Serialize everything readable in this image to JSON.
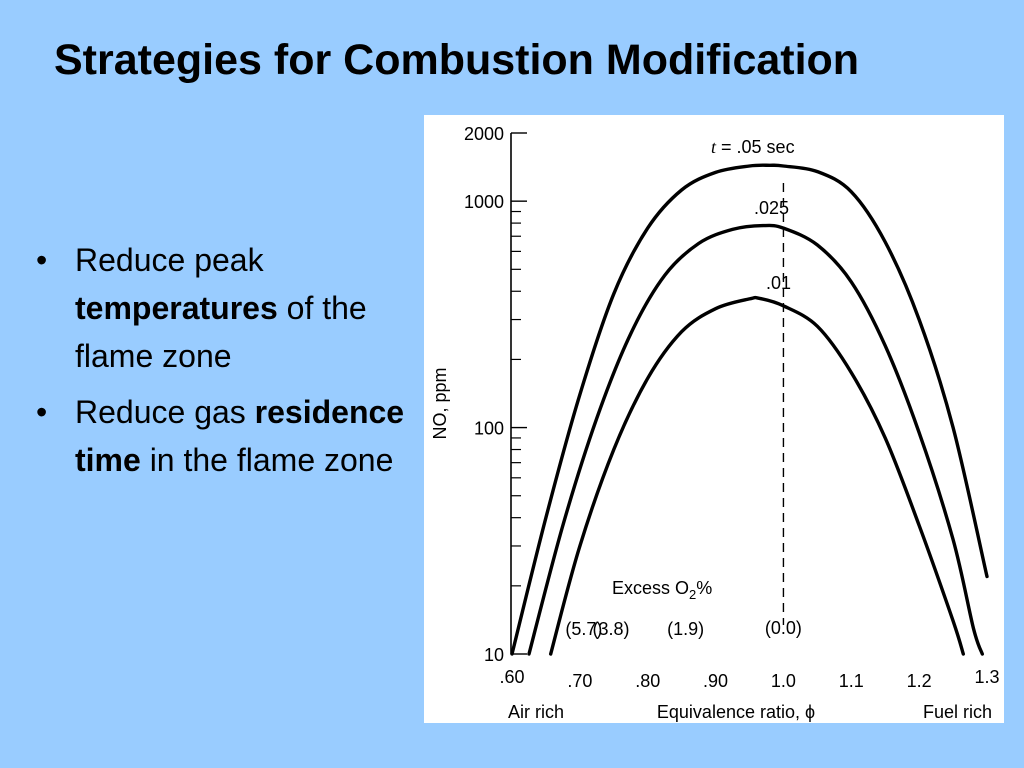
{
  "slide": {
    "title": "Strategies for Combustion Modification",
    "bullets": [
      {
        "before": "Reduce peak ",
        "bold": "temperatures",
        "after": " of the flame zone"
      },
      {
        "before": "Reduce gas ",
        "bold": "residence time",
        "after": " in the flame zone"
      }
    ],
    "bullet_glyph": "•"
  },
  "chart_data": {
    "type": "line",
    "ylabel": "NO, ppm",
    "xlabel": "Equivalence ratio, ϕ",
    "x_left_label": "Air rich",
    "x_right_label": "Fuel rich",
    "xlim": [
      0.6,
      1.3
    ],
    "ylim": [
      10,
      2000
    ],
    "y_scale": "log",
    "x_ticks": [
      {
        "value": 0.6,
        "label": ".60"
      },
      {
        "value": 0.7,
        "label": ".70"
      },
      {
        "value": 0.8,
        "label": ".80"
      },
      {
        "value": 0.9,
        "label": ".90"
      },
      {
        "value": 1.0,
        "label": "1.0"
      },
      {
        "value": 1.1,
        "label": "1.1"
      },
      {
        "value": 1.2,
        "label": "1.2"
      },
      {
        "value": 1.3,
        "label": "1.3"
      }
    ],
    "y_ticks": [
      {
        "value": 10,
        "label": "10"
      },
      {
        "value": 100,
        "label": "100"
      },
      {
        "value": 1000,
        "label": "1000"
      },
      {
        "value": 2000,
        "label": "2000"
      }
    ],
    "excess_o2": {
      "label_main": "Excess O",
      "label_sub": "2",
      "label_suffix": "%",
      "values": [
        {
          "x": 0.7,
          "label": "(5.7)"
        },
        {
          "x": 0.74,
          "label": "(3.8)"
        },
        {
          "x": 0.85,
          "label": "(1.9)"
        },
        {
          "x": 1.0,
          "label": "(0.0)"
        }
      ]
    },
    "stoichiometric_line_x": 1.0,
    "series": [
      {
        "name": ".05 sec",
        "label": "t  =  .05 sec",
        "points": [
          [
            0.6,
            10
          ],
          [
            0.65,
            40
          ],
          [
            0.7,
            140
          ],
          [
            0.75,
            390
          ],
          [
            0.8,
            760
          ],
          [
            0.85,
            1120
          ],
          [
            0.9,
            1340
          ],
          [
            0.95,
            1430
          ],
          [
            0.98,
            1440
          ],
          [
            1.0,
            1430
          ],
          [
            1.05,
            1350
          ],
          [
            1.1,
            1100
          ],
          [
            1.15,
            660
          ],
          [
            1.2,
            300
          ],
          [
            1.25,
            100
          ],
          [
            1.3,
            22
          ]
        ]
      },
      {
        "name": ".025",
        "label": ".025",
        "points": [
          [
            0.625,
            10
          ],
          [
            0.675,
            37
          ],
          [
            0.725,
            110
          ],
          [
            0.775,
            260
          ],
          [
            0.825,
            470
          ],
          [
            0.875,
            650
          ],
          [
            0.925,
            750
          ],
          [
            0.97,
            780
          ],
          [
            1.0,
            760
          ],
          [
            1.05,
            640
          ],
          [
            1.1,
            440
          ],
          [
            1.15,
            230
          ],
          [
            1.2,
            95
          ],
          [
            1.25,
            32
          ],
          [
            1.28,
            13
          ],
          [
            1.293,
            10
          ]
        ]
      },
      {
        "name": ".01",
        "label": ".01",
        "points": [
          [
            0.657,
            10
          ],
          [
            0.7,
            30
          ],
          [
            0.75,
            80
          ],
          [
            0.8,
            165
          ],
          [
            0.85,
            265
          ],
          [
            0.9,
            335
          ],
          [
            0.95,
            370
          ],
          [
            0.965,
            372
          ],
          [
            1.0,
            345
          ],
          [
            1.05,
            280
          ],
          [
            1.1,
            175
          ],
          [
            1.15,
            90
          ],
          [
            1.2,
            37
          ],
          [
            1.25,
            14
          ],
          [
            1.265,
            10
          ]
        ]
      }
    ]
  }
}
